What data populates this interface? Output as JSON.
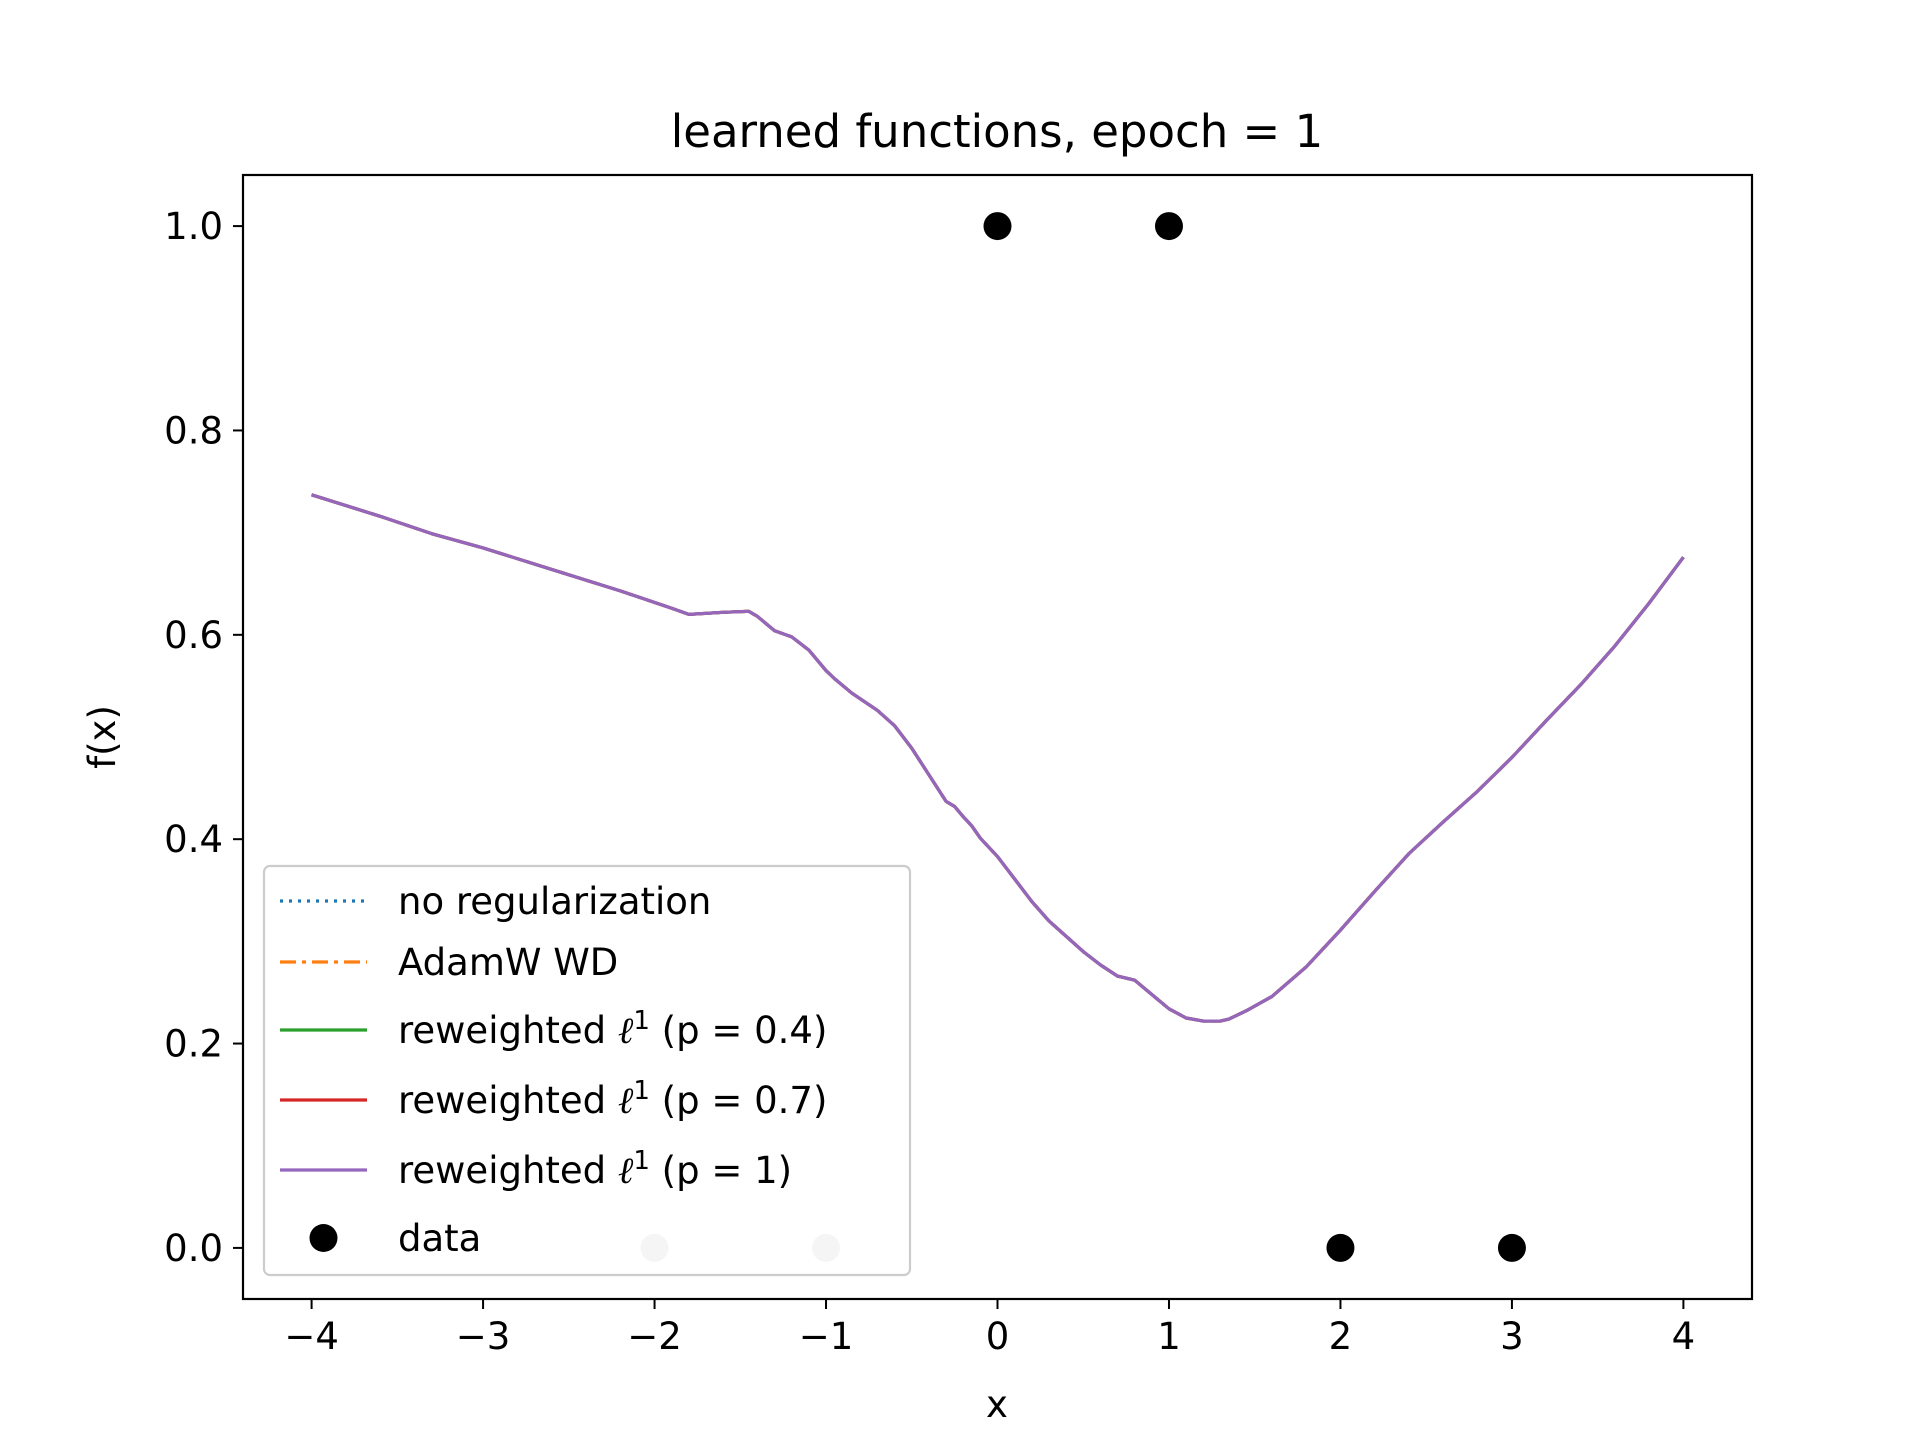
{
  "chart_data": {
    "type": "line",
    "title": "learned functions, epoch = 1",
    "xlabel": "x",
    "ylabel": "f(x)",
    "xlim": [
      -4.4,
      4.4
    ],
    "ylim": [
      -0.05,
      1.05
    ],
    "xticks": [
      -4,
      -3,
      -2,
      -1,
      0,
      1,
      2,
      3,
      4
    ],
    "xtick_labels": [
      "−4",
      "−3",
      "−2",
      "−1",
      "0",
      "1",
      "2",
      "3",
      "4"
    ],
    "yticks": [
      0.0,
      0.2,
      0.4,
      0.6,
      0.8,
      1.0
    ],
    "ytick_labels": [
      "0.0",
      "0.2",
      "0.4",
      "0.6",
      "0.8",
      "1.0"
    ],
    "grid": false,
    "legend_position": "lower-left",
    "x": [
      -4.0,
      -3.6,
      -3.3,
      -3.0,
      -2.6,
      -2.2,
      -1.9,
      -1.8,
      -1.6,
      -1.45,
      -1.4,
      -1.3,
      -1.2,
      -1.1,
      -1.0,
      -0.95,
      -0.85,
      -0.7,
      -0.6,
      -0.5,
      -0.4,
      -0.3,
      -0.25,
      -0.2,
      -0.15,
      -0.1,
      0.0,
      0.1,
      0.2,
      0.3,
      0.4,
      0.5,
      0.6,
      0.7,
      0.8,
      0.9,
      1.0,
      1.1,
      1.2,
      1.3,
      1.35,
      1.45,
      1.6,
      1.8,
      2.0,
      2.2,
      2.4,
      2.6,
      2.8,
      3.0,
      3.2,
      3.4,
      3.6,
      3.8,
      4.0
    ],
    "series": [
      {
        "name": "no regularization",
        "color": "#1f77b4",
        "style": "dotted",
        "values": [
          0.737,
          0.716,
          0.699,
          0.685,
          0.664,
          0.643,
          0.626,
          0.62,
          0.622,
          0.623,
          0.618,
          0.604,
          0.598,
          0.585,
          0.565,
          0.557,
          0.543,
          0.526,
          0.511,
          0.489,
          0.463,
          0.437,
          0.432,
          0.422,
          0.413,
          0.401,
          0.383,
          0.361,
          0.339,
          0.32,
          0.305,
          0.29,
          0.277,
          0.266,
          0.262,
          0.248,
          0.234,
          0.225,
          0.222,
          0.222,
          0.224,
          0.232,
          0.246,
          0.275,
          0.311,
          0.349,
          0.386,
          0.417,
          0.447,
          0.48,
          0.516,
          0.551,
          0.589,
          0.631,
          0.676
        ]
      },
      {
        "name": "AdamW WD",
        "color": "#ff7f0e",
        "style": "dashdot",
        "values": [
          0.737,
          0.716,
          0.699,
          0.685,
          0.664,
          0.643,
          0.626,
          0.62,
          0.622,
          0.623,
          0.618,
          0.604,
          0.598,
          0.585,
          0.565,
          0.557,
          0.543,
          0.526,
          0.511,
          0.489,
          0.463,
          0.437,
          0.432,
          0.422,
          0.413,
          0.401,
          0.383,
          0.361,
          0.339,
          0.32,
          0.305,
          0.29,
          0.277,
          0.266,
          0.262,
          0.248,
          0.234,
          0.225,
          0.222,
          0.222,
          0.224,
          0.232,
          0.246,
          0.275,
          0.311,
          0.349,
          0.386,
          0.417,
          0.447,
          0.48,
          0.516,
          0.551,
          0.589,
          0.631,
          0.676
        ]
      },
      {
        "name": "reweighted ℓ¹ (p = 0.4)",
        "color": "#2ca02c",
        "style": "solid",
        "values": [
          0.737,
          0.716,
          0.699,
          0.685,
          0.664,
          0.643,
          0.626,
          0.62,
          0.622,
          0.623,
          0.618,
          0.604,
          0.598,
          0.585,
          0.565,
          0.557,
          0.543,
          0.526,
          0.511,
          0.489,
          0.463,
          0.437,
          0.432,
          0.422,
          0.413,
          0.401,
          0.383,
          0.361,
          0.339,
          0.32,
          0.305,
          0.29,
          0.277,
          0.266,
          0.262,
          0.248,
          0.234,
          0.225,
          0.222,
          0.222,
          0.224,
          0.232,
          0.246,
          0.275,
          0.311,
          0.349,
          0.386,
          0.417,
          0.447,
          0.48,
          0.516,
          0.551,
          0.589,
          0.631,
          0.676
        ]
      },
      {
        "name": "reweighted ℓ¹ (p = 0.7)",
        "color": "#d62728",
        "style": "solid",
        "values": [
          0.737,
          0.716,
          0.699,
          0.685,
          0.664,
          0.643,
          0.626,
          0.62,
          0.622,
          0.623,
          0.618,
          0.604,
          0.598,
          0.585,
          0.565,
          0.557,
          0.543,
          0.526,
          0.511,
          0.489,
          0.463,
          0.437,
          0.432,
          0.422,
          0.413,
          0.401,
          0.383,
          0.361,
          0.339,
          0.32,
          0.305,
          0.29,
          0.277,
          0.266,
          0.262,
          0.248,
          0.234,
          0.225,
          0.222,
          0.222,
          0.224,
          0.232,
          0.246,
          0.275,
          0.311,
          0.349,
          0.386,
          0.417,
          0.447,
          0.48,
          0.516,
          0.551,
          0.589,
          0.631,
          0.676
        ]
      },
      {
        "name": "reweighted ℓ¹ (p = 1)",
        "color": "#9467bd",
        "style": "solid",
        "values": [
          0.737,
          0.716,
          0.699,
          0.685,
          0.664,
          0.643,
          0.626,
          0.62,
          0.622,
          0.623,
          0.618,
          0.604,
          0.598,
          0.585,
          0.565,
          0.557,
          0.543,
          0.526,
          0.511,
          0.489,
          0.463,
          0.437,
          0.432,
          0.422,
          0.413,
          0.401,
          0.383,
          0.361,
          0.339,
          0.32,
          0.305,
          0.29,
          0.277,
          0.266,
          0.262,
          0.248,
          0.234,
          0.225,
          0.222,
          0.222,
          0.224,
          0.232,
          0.246,
          0.275,
          0.311,
          0.349,
          0.386,
          0.417,
          0.447,
          0.48,
          0.516,
          0.551,
          0.589,
          0.631,
          0.676
        ]
      }
    ],
    "scatter": {
      "name": "data",
      "color": "#000000",
      "points": [
        {
          "x": 0,
          "y": 1.0
        },
        {
          "x": 1,
          "y": 1.0
        },
        {
          "x": 2,
          "y": 0.0
        },
        {
          "x": 3,
          "y": 0.0
        }
      ]
    },
    "scatter_faded": {
      "color": "#cccccc",
      "points": [
        {
          "x": -2,
          "y": 0.0
        },
        {
          "x": -1,
          "y": 0.0
        }
      ]
    },
    "legend": [
      {
        "prefix": "no regularization",
        "sup": "",
        "suffix": "",
        "color": "#1f77b4",
        "style": "dotted"
      },
      {
        "prefix": "AdamW WD",
        "sup": "",
        "suffix": "",
        "color": "#ff7f0e",
        "style": "dashdot"
      },
      {
        "prefix": "reweighted ",
        "ell": "ℓ",
        "sup": "1",
        "suffix": " (p = 0.4)",
        "color": "#2ca02c",
        "style": "solid"
      },
      {
        "prefix": "reweighted ",
        "ell": "ℓ",
        "sup": "1",
        "suffix": " (p = 0.7)",
        "color": "#d62728",
        "style": "solid"
      },
      {
        "prefix": "reweighted ",
        "ell": "ℓ",
        "sup": "1",
        "suffix": " (p = 1)",
        "color": "#9467bd",
        "style": "solid"
      },
      {
        "prefix": "data",
        "sup": "",
        "suffix": "",
        "color": "#000000",
        "style": "marker"
      }
    ]
  }
}
